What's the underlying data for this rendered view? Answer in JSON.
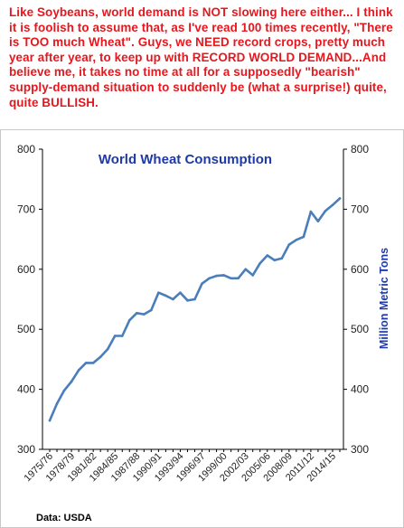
{
  "commentary": {
    "text": "Like Soybeans, world demand is NOT slowing here either... I think it is foolish to assume that, as I've read 100 times recently, \"There is TOO much Wheat\". Guys, we NEED record crops, pretty much year after year, to keep up with RECORD WORLD DEMAND...And believe me, it takes no time at all for a supposedly \"bearish\" supply-demand situation to suddenly be (what a surprise!) quite, quite BULLISH."
  },
  "source_note": "Data: USDA",
  "colors": {
    "commentary_text": "#e8161d",
    "title": "#1f3aa8",
    "line": "#4a7ebb",
    "panel_border": "#c8c8c8"
  },
  "chart_data": {
    "type": "line",
    "title": "World Wheat Consumption",
    "ylabel": "Million Metric Tons",
    "xlabel": "",
    "ylim": [
      300,
      800
    ],
    "yticks": [
      300,
      400,
      500,
      600,
      700,
      800
    ],
    "y_axes": "left and right",
    "grid": false,
    "legend": "none",
    "x_tick_labels": [
      "1975/76",
      "1978/79",
      "1981/82",
      "1984/85",
      "1987/88",
      "1990/91",
      "1993/94",
      "1996/97",
      "1999/00",
      "2002/03",
      "2005/06",
      "2008/09",
      "2011/12",
      "2014/15"
    ],
    "x": [
      "1975/76",
      "1976/77",
      "1977/78",
      "1978/79",
      "1979/80",
      "1980/81",
      "1981/82",
      "1982/83",
      "1983/84",
      "1984/85",
      "1985/86",
      "1986/87",
      "1987/88",
      "1988/89",
      "1989/90",
      "1990/91",
      "1991/92",
      "1992/93",
      "1993/94",
      "1994/95",
      "1995/96",
      "1996/97",
      "1997/98",
      "1998/99",
      "1999/00",
      "2000/01",
      "2001/02",
      "2002/03",
      "2003/04",
      "2004/05",
      "2005/06",
      "2006/07",
      "2007/08",
      "2008/09",
      "2009/10",
      "2010/11",
      "2011/12",
      "2012/13",
      "2013/14",
      "2014/15",
      "2015/16"
    ],
    "series": [
      {
        "values": [
          348,
          376,
          398,
          413,
          432,
          444,
          444,
          454,
          467,
          489,
          489,
          515,
          527,
          525,
          532,
          561,
          556,
          550,
          561,
          548,
          550,
          576,
          585,
          589,
          590,
          585,
          585,
          600,
          590,
          610,
          623,
          615,
          618,
          641,
          649,
          654,
          696,
          680,
          697,
          707,
          718
        ]
      }
    ]
  }
}
